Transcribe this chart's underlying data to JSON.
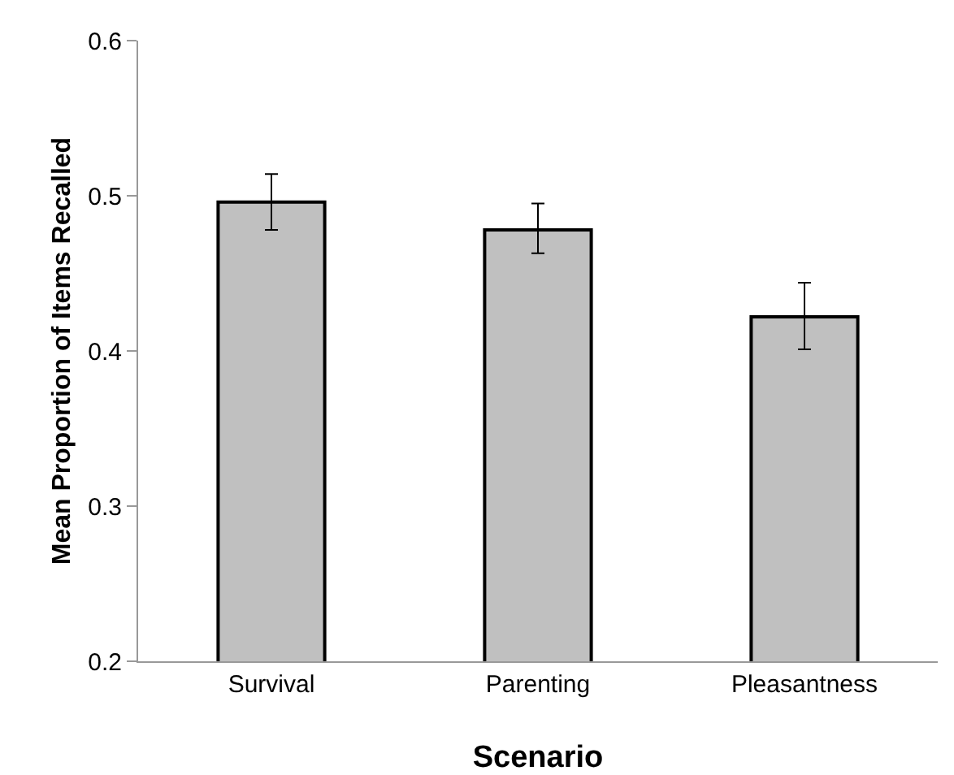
{
  "chart_data": {
    "type": "bar",
    "xlabel": "Scenario",
    "ylabel": "Mean Proportion of Items Recalled",
    "categories": [
      "Survival",
      "Parenting",
      "Pleasantness"
    ],
    "values": [
      0.496,
      0.478,
      0.422
    ],
    "errors": [
      [
        0.478,
        0.514
      ],
      [
        0.463,
        0.495
      ],
      [
        0.401,
        0.444
      ]
    ],
    "color": "#c0c0c0",
    "ylim": [
      0.2,
      0.6
    ],
    "yticks": [
      0.2,
      0.3,
      0.4,
      0.5,
      0.6
    ],
    "grid": false,
    "legend": false
  }
}
